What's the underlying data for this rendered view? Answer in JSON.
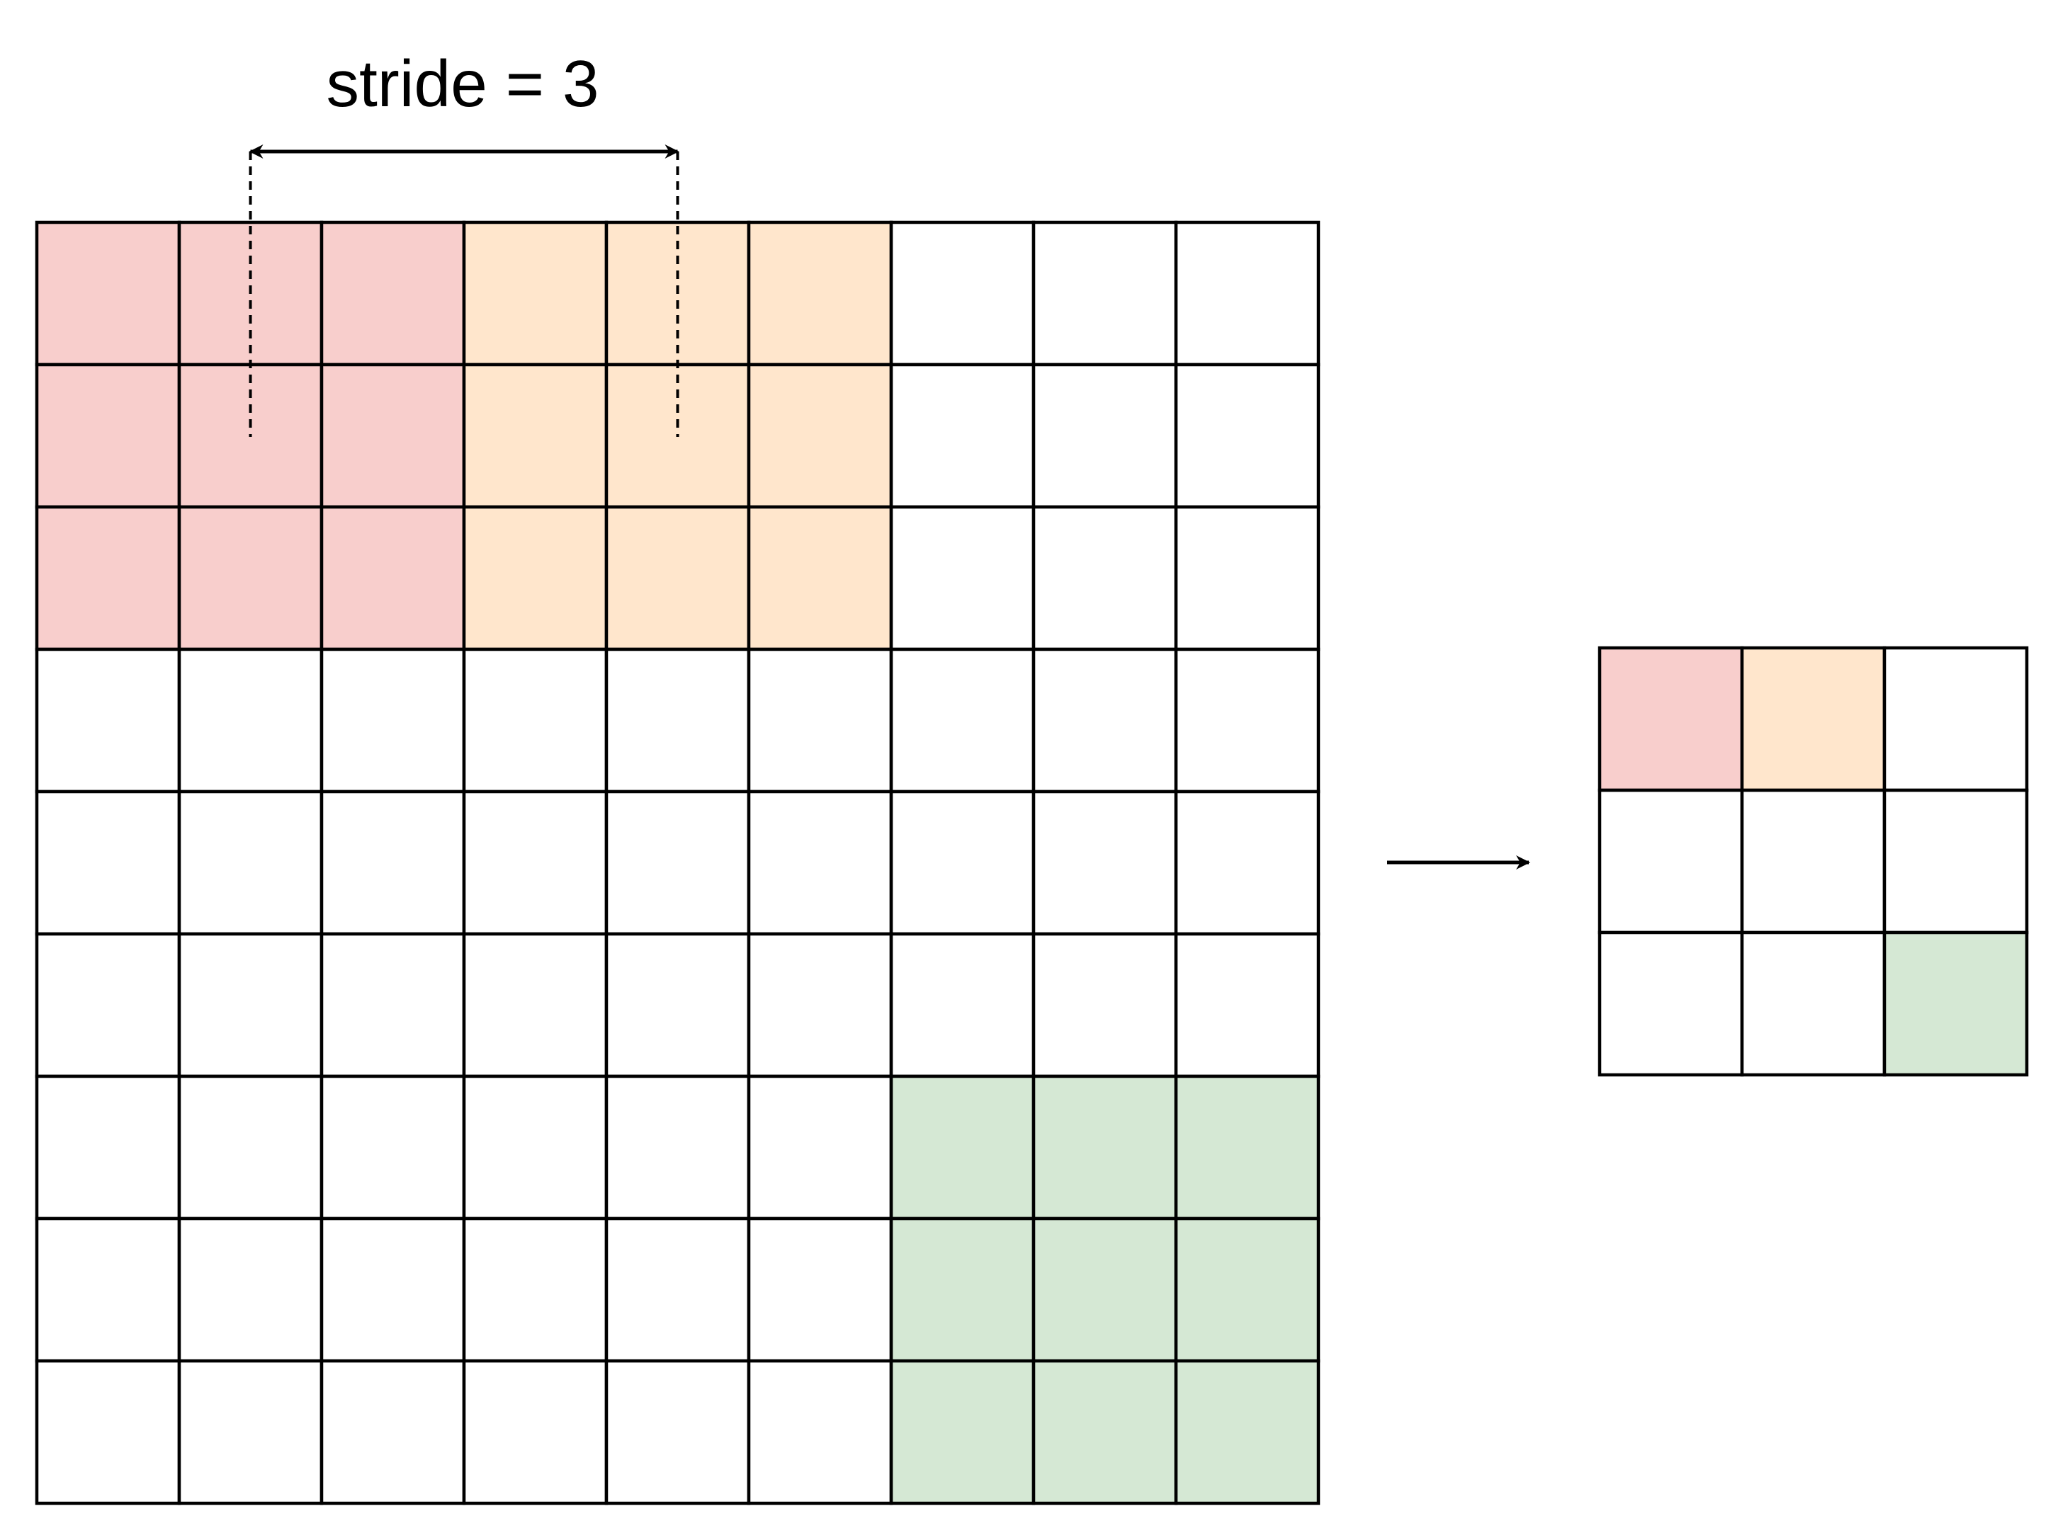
{
  "stride_label": "stride = 3",
  "colors": {
    "first_window": "#f8cecc",
    "second_window": "#ffe6cc",
    "last_window": "#d5e8d4",
    "cell_background": "#ffffff",
    "grid_line": "#000000"
  },
  "input_grid": {
    "rows": 9,
    "cols": 9,
    "windows": [
      {
        "name": "first-window",
        "row": 0,
        "col": 0,
        "size": 3,
        "color_key": "first_window"
      },
      {
        "name": "second-window",
        "row": 0,
        "col": 3,
        "size": 3,
        "color_key": "second_window"
      },
      {
        "name": "last-window",
        "row": 6,
        "col": 6,
        "size": 3,
        "color_key": "last_window"
      }
    ]
  },
  "output_grid": {
    "rows": 3,
    "cols": 3,
    "cells": [
      {
        "name": "output-cell-first",
        "row": 0,
        "col": 0,
        "color_key": "first_window"
      },
      {
        "name": "output-cell-second",
        "row": 0,
        "col": 1,
        "color_key": "second_window"
      },
      {
        "name": "output-cell-last",
        "row": 2,
        "col": 2,
        "color_key": "last_window"
      }
    ]
  },
  "stride_indicator": {
    "from_col_center": 1,
    "to_col_center": 4
  }
}
